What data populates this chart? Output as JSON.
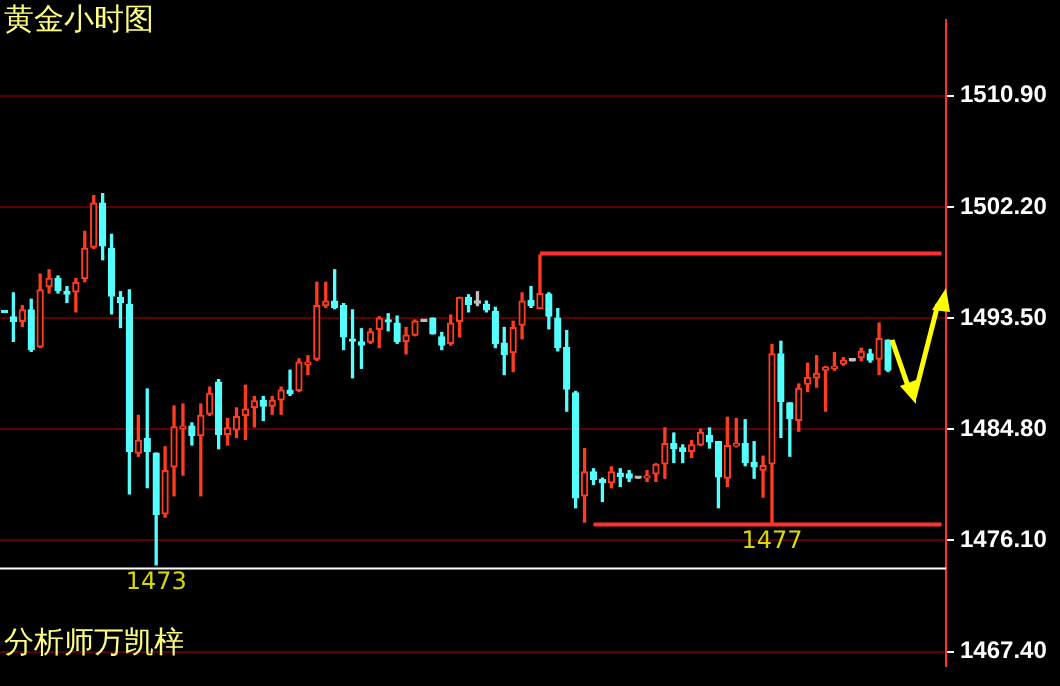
{
  "chart_data": {
    "type": "candlestick",
    "title": "黄金小时图",
    "annotations": [
      {
        "text": "1473",
        "y": 1474.18
      },
      {
        "text": "1477",
        "y": 1477.38
      },
      "分析师万凯梓"
    ],
    "categories": [
      null,
      null,
      null,
      null,
      null,
      null,
      null,
      null,
      null,
      null,
      null,
      null,
      null,
      null,
      null,
      null,
      null,
      null,
      null,
      null,
      null,
      null,
      null,
      null,
      null,
      null,
      null,
      null,
      null,
      null,
      null,
      null,
      null,
      null,
      null,
      null,
      null,
      null,
      null,
      null,
      null,
      null,
      null,
      null,
      null,
      null,
      null,
      null,
      null,
      null,
      null,
      null,
      null,
      null,
      null,
      null,
      null,
      null,
      null,
      null,
      null,
      null,
      null,
      null,
      null,
      null,
      null,
      null,
      null,
      null,
      null,
      null,
      null,
      null,
      null,
      null,
      null,
      null,
      null,
      null,
      null,
      null,
      null,
      null,
      null,
      null,
      null,
      null,
      null,
      null,
      null,
      null,
      null,
      null,
      null,
      null,
      null,
      null,
      null,
      null,
      null,
      null,
      null,
      null,
      null,
      null
    ],
    "series": [
      {
        "ohlc": [
          [
            1493.95,
            1493.95,
            1493.95,
            1493.95
          ],
          [
            1493.6,
            1495.47,
            1491.68,
            1493.25
          ],
          [
            1493.25,
            1494.48,
            1492.86,
            1494.14
          ],
          [
            1494.14,
            1494.97,
            1490.9,
            1491.04
          ],
          [
            1491.24,
            1496.94,
            1491.19,
            1495.71
          ],
          [
            1495.96,
            1497.28,
            1495.47,
            1496.6
          ],
          [
            1496.6,
            1496.79,
            1495.47,
            1495.66
          ],
          [
            1495.56,
            1495.96,
            1494.73,
            1495.37
          ],
          [
            1495.56,
            1496.6,
            1493.99,
            1496.3
          ],
          [
            1496.6,
            1500.28,
            1496.35,
            1498.96
          ],
          [
            1499.05,
            1503.08,
            1498.96,
            1502.49
          ],
          [
            1502.49,
            1503.23,
            1498.07,
            1499.15
          ],
          [
            1498.96,
            1500.04,
            1493.84,
            1495.22
          ],
          [
            1495.12,
            1495.56,
            1492.76,
            1494.73
          ],
          [
            1494.58,
            1495.71,
            1479.74,
            1483.08
          ],
          [
            1482.93,
            1485.88,
            1482.69,
            1483.92
          ],
          [
            1484.06,
            1487.95,
            1480.23,
            1483.08
          ],
          [
            1482.93,
            1482.93,
            1474.18,
            1478.12
          ],
          [
            1478.17,
            1483.42,
            1477.92,
            1481.56
          ],
          [
            1481.85,
            1486.62,
            1479.59,
            1484.99
          ],
          [
            1484.85,
            1486.77,
            1481.21,
            1485.05
          ],
          [
            1485.05,
            1485.29,
            1483.57,
            1484.31
          ],
          [
            1484.31,
            1486.77,
            1479.59,
            1485.88
          ],
          [
            1485.98,
            1488.09,
            1485.88,
            1487.6
          ],
          [
            1488.49,
            1488.68,
            1483.28,
            1484.41
          ],
          [
            1484.41,
            1485.64,
            1483.57,
            1484.9
          ],
          [
            1484.75,
            1486.47,
            1484.16,
            1485.78
          ],
          [
            1485.88,
            1488.24,
            1484.01,
            1486.37
          ],
          [
            1486.52,
            1487.36,
            1484.99,
            1487.01
          ],
          [
            1487.06,
            1487.36,
            1485.49,
            1486.62
          ],
          [
            1486.62,
            1487.36,
            1485.98,
            1487.06
          ],
          [
            1487.11,
            1488.09,
            1485.98,
            1487.85
          ],
          [
            1487.85,
            1489.42,
            1487.45,
            1487.6
          ],
          [
            1487.85,
            1490.3,
            1487.75,
            1490.06
          ],
          [
            1489.86,
            1490.55,
            1489.08,
            1490.06
          ],
          [
            1490.3,
            1496.3,
            1490.2,
            1494.48
          ],
          [
            1494.48,
            1496.3,
            1494.34,
            1494.83
          ],
          [
            1494.83,
            1497.28,
            1494.24,
            1494.34
          ],
          [
            1494.48,
            1494.63,
            1491.04,
            1492.03
          ],
          [
            1491.8,
            1494.14,
            1488.83,
            1491.7
          ],
          [
            1491.63,
            1492.66,
            1489.57,
            1491.39
          ],
          [
            1491.63,
            1492.66,
            1491.53,
            1492.42
          ],
          [
            1492.61,
            1493.6,
            1491.19,
            1493.5
          ],
          [
            1493.3,
            1493.84,
            1492.51,
            1493.2
          ],
          [
            1493.11,
            1493.65,
            1491.53,
            1491.68
          ],
          [
            1491.68,
            1492.76,
            1490.7,
            1492.17
          ],
          [
            1492.17,
            1493.35,
            1492.12,
            1493.25
          ],
          [
            1493.25,
            1493.25,
            1493.25,
            1493.25
          ],
          [
            1493.5,
            1493.5,
            1492.27,
            1492.27
          ],
          [
            1492.03,
            1492.37,
            1491.04,
            1491.39
          ],
          [
            1491.53,
            1493.74,
            1491.39,
            1493.11
          ],
          [
            1493.25,
            1495.12,
            1492.03,
            1495.12
          ],
          [
            1495.12,
            1495.32,
            1493.99,
            1494.58
          ],
          [
            1494.68,
            1495.56,
            1494.48,
            1494.68
          ],
          [
            1494.58,
            1494.83,
            1493.99,
            1494.14
          ],
          [
            1494.0,
            1494.34,
            1491.19,
            1491.53
          ],
          [
            1491.53,
            1492.76,
            1489.08,
            1490.65
          ],
          [
            1490.8,
            1493.25,
            1489.32,
            1492.76
          ],
          [
            1492.96,
            1495.47,
            1491.88,
            1494.83
          ],
          [
            1494.88,
            1495.96,
            1494.34,
            1494.48
          ],
          [
            1494.24,
            1498.42,
            1494.24,
            1495.42
          ],
          [
            1495.37,
            1495.47,
            1492.66,
            1493.65
          ],
          [
            1493.5,
            1494.24,
            1490.94,
            1491.19
          ],
          [
            1491.19,
            1492.52,
            1486.22,
            1487.95
          ],
          [
            1487.65,
            1487.75,
            1478.66,
            1479.44
          ],
          [
            1479.59,
            1483.28,
            1477.53,
            1481.46
          ],
          [
            1481.46,
            1481.7,
            1480.48,
            1480.87
          ],
          [
            1480.87,
            1480.97,
            1479.15,
            1480.62
          ],
          [
            1480.62,
            1481.85,
            1480.23,
            1481.46
          ],
          [
            1481.36,
            1481.7,
            1480.33,
            1481.11
          ],
          [
            1481.31,
            1481.56,
            1480.72,
            1480.97
          ],
          [
            1480.97,
            1480.97,
            1480.97,
            1480.97
          ],
          [
            1481.0,
            1481.56,
            1480.72,
            1481.1
          ],
          [
            1481.31,
            1482.1,
            1480.72,
            1482.05
          ],
          [
            1482.1,
            1484.9,
            1480.97,
            1483.67
          ],
          [
            1483.67,
            1484.5,
            1482.2,
            1483.28
          ],
          [
            1483.33,
            1483.57,
            1482.2,
            1483.08
          ],
          [
            1483.08,
            1483.92,
            1482.59,
            1483.57
          ],
          [
            1483.57,
            1484.8,
            1483.52,
            1484.55
          ],
          [
            1484.31,
            1484.9,
            1483.33,
            1483.82
          ],
          [
            1483.82,
            1483.82,
            1478.66,
            1481.07
          ],
          [
            1480.97,
            1485.73,
            1480.33,
            1483.52
          ],
          [
            1483.5,
            1485.64,
            1483.42,
            1483.67
          ],
          [
            1483.67,
            1485.54,
            1481.95,
            1482.2
          ],
          [
            1482.2,
            1483.82,
            1480.97,
            1481.85
          ],
          [
            1481.6,
            1482.69,
            1479.49,
            1481.95
          ],
          [
            1482.1,
            1491.43,
            1477.38,
            1490.7
          ],
          [
            1490.7,
            1491.68,
            1484.16,
            1486.96
          ],
          [
            1486.86,
            1486.86,
            1482.69,
            1485.64
          ],
          [
            1485.49,
            1488.34,
            1484.65,
            1488.0
          ],
          [
            1488.34,
            1489.96,
            1487.75,
            1488.83
          ],
          [
            1488.83,
            1490.55,
            1488.1,
            1489.17
          ],
          [
            1489.42,
            1489.71,
            1486.22,
            1489.66
          ],
          [
            1489.56,
            1490.8,
            1489.42,
            1489.71
          ],
          [
            1489.91,
            1490.4,
            1489.81,
            1490.21
          ],
          [
            1490.16,
            1490.16,
            1490.16,
            1490.16
          ],
          [
            1490.4,
            1491.14,
            1490.16,
            1490.9
          ],
          [
            1490.7,
            1491.04,
            1490.06,
            1490.21
          ],
          [
            1490.3,
            1493.11,
            1489.08,
            1491.88
          ],
          [
            1491.78,
            1491.78,
            1489.32,
            1489.42
          ],
          null,
          null,
          null,
          null,
          null,
          null
        ],
        "colors": [
          "#54ffff",
          "#54ffff",
          "#ff3c1e",
          "#54ffff",
          "#ff3c1e",
          "#ff3c1e",
          "#54ffff",
          "#54ffff",
          "#ff3c1e",
          "#ff3c1e",
          "#ff3c1e",
          "#54ffff",
          "#54ffff",
          "#54ffff",
          "#54ffff",
          "#ff3c1e",
          "#54ffff",
          "#54ffff",
          "#ff3c1e",
          "#ff3c1e",
          "#ff3c1e",
          "#54ffff",
          "#ff3c1e",
          "#ff3c1e",
          "#54ffff",
          "#ff3c1e",
          "#ff3c1e",
          "#ff3c1e",
          "#ff3c1e",
          "#54ffff",
          "#ff3c1e",
          "#ff3c1e",
          "#54ffff",
          "#ff3c1e",
          "#ff3c1e",
          "#ff3c1e",
          "#ff3c1e",
          "#54ffff",
          "#54ffff",
          "#54ffff",
          "#54ffff",
          "#ff3c1e",
          "#ff3c1e",
          "#54ffff",
          "#54ffff",
          "#ff3c1e",
          "#ff3c1e",
          "#c0c0c0",
          "#54ffff",
          "#54ffff",
          "#ff3c1e",
          "#ff3c1e",
          "#54ffff",
          "#c0c0c0",
          "#54ffff",
          "#54ffff",
          "#54ffff",
          "#ff3c1e",
          "#ff3c1e",
          "#54ffff",
          "#ff3c1e",
          "#54ffff",
          "#54ffff",
          "#54ffff",
          "#54ffff",
          "#ff3c1e",
          "#54ffff",
          "#54ffff",
          "#ff3c1e",
          "#54ffff",
          "#54ffff",
          "#c0c0c0",
          "#ff3c1e",
          "#ff3c1e",
          "#ff3c1e",
          "#54ffff",
          "#54ffff",
          "#ff3c1e",
          "#ff3c1e",
          "#54ffff",
          "#54ffff",
          "#ff3c1e",
          "#ff3c1e",
          "#54ffff",
          "#54ffff",
          "#ff3c1e",
          "#ff3c1e",
          "#54ffff",
          "#54ffff",
          "#ff3c1e",
          "#ff3c1e",
          "#ff3c1e",
          "#ff3c1e",
          "#ff3c1e",
          "#ff3c1e",
          "#c0c0c0",
          "#ff3c1e",
          "#54ffff",
          "#ff3c1e",
          "#54ffff",
          null,
          null,
          null,
          null,
          null,
          null
        ]
      },
      {
        "type": "line",
        "color": "#ff3030",
        "values": [
          null,
          null,
          null,
          null,
          null,
          null,
          null,
          null,
          null,
          null,
          null,
          null,
          null,
          null,
          null,
          null,
          null,
          null,
          null,
          null,
          null,
          null,
          null,
          null,
          null,
          null,
          null,
          null,
          null,
          null,
          null,
          null,
          null,
          null,
          null,
          null,
          null,
          null,
          null,
          null,
          null,
          null,
          null,
          null,
          null,
          null,
          null,
          null,
          null,
          null,
          null,
          null,
          null,
          null,
          null,
          null,
          null,
          null,
          null,
          null,
          1498.56,
          1498.56,
          1498.56,
          1498.56,
          1498.56,
          1498.56,
          1498.56,
          1498.56,
          1498.56,
          1498.56,
          1498.56,
          1498.56,
          1498.56,
          1498.56,
          1498.56,
          1498.56,
          1498.56,
          1498.56,
          1498.56,
          1498.56,
          1498.56,
          1498.56,
          1498.56,
          1498.56,
          1498.56,
          1498.56,
          1498.56,
          1498.56,
          1498.56,
          1498.56,
          1498.56,
          1498.56,
          1498.56,
          1498.56,
          1498.56,
          1498.56,
          1498.56,
          1498.56,
          1498.56,
          1498.56,
          1498.56,
          1498.56,
          1498.56,
          1498.56,
          1498.56,
          1498.56
        ]
      },
      {
        "type": "line",
        "color": "#ff3030",
        "values": [
          null,
          null,
          null,
          null,
          null,
          null,
          null,
          null,
          null,
          null,
          null,
          null,
          null,
          null,
          null,
          null,
          null,
          null,
          null,
          null,
          null,
          null,
          null,
          null,
          null,
          null,
          null,
          null,
          null,
          null,
          null,
          null,
          null,
          null,
          null,
          null,
          null,
          null,
          null,
          null,
          null,
          null,
          null,
          null,
          null,
          null,
          null,
          null,
          null,
          null,
          null,
          null,
          null,
          null,
          null,
          null,
          null,
          null,
          null,
          null,
          null,
          null,
          null,
          null,
          null,
          null,
          1477.35,
          1477.35,
          1477.35,
          1477.35,
          1477.35,
          1477.35,
          1477.35,
          1477.35,
          1477.35,
          1477.35,
          1477.35,
          1477.35,
          1477.35,
          1477.35,
          1477.35,
          1477.35,
          1477.35,
          1477.35,
          1477.35,
          1477.35,
          1477.35,
          1477.35,
          1477.35,
          1477.35,
          1477.35,
          1477.35,
          1477.35,
          1477.35,
          1477.35,
          1477.35,
          1477.35,
          1477.35,
          1477.35,
          1477.35,
          1477.35,
          1477.35,
          1477.35,
          1477.35,
          1477.35,
          1477.35
        ]
      }
    ],
    "ylim": [
      1466.3,
      1516.8
    ],
    "yticks": [
      {
        "value": 1467.4,
        "label": "1467.40"
      },
      {
        "value": 1476.1,
        "label": "1476.10"
      },
      {
        "value": 1484.8,
        "label": "1484.80"
      },
      {
        "value": 1493.5,
        "label": "1493.50"
      },
      {
        "value": 1502.2,
        "label": "1502.20"
      },
      {
        "value": 1510.9,
        "label": "1510.90"
      }
    ],
    "grid": "y",
    "legend": false,
    "tick_labels": "y",
    "ref_lines": [
      {
        "axis": "y",
        "value": 1473.9,
        "color": "#ffffff"
      }
    ]
  }
}
